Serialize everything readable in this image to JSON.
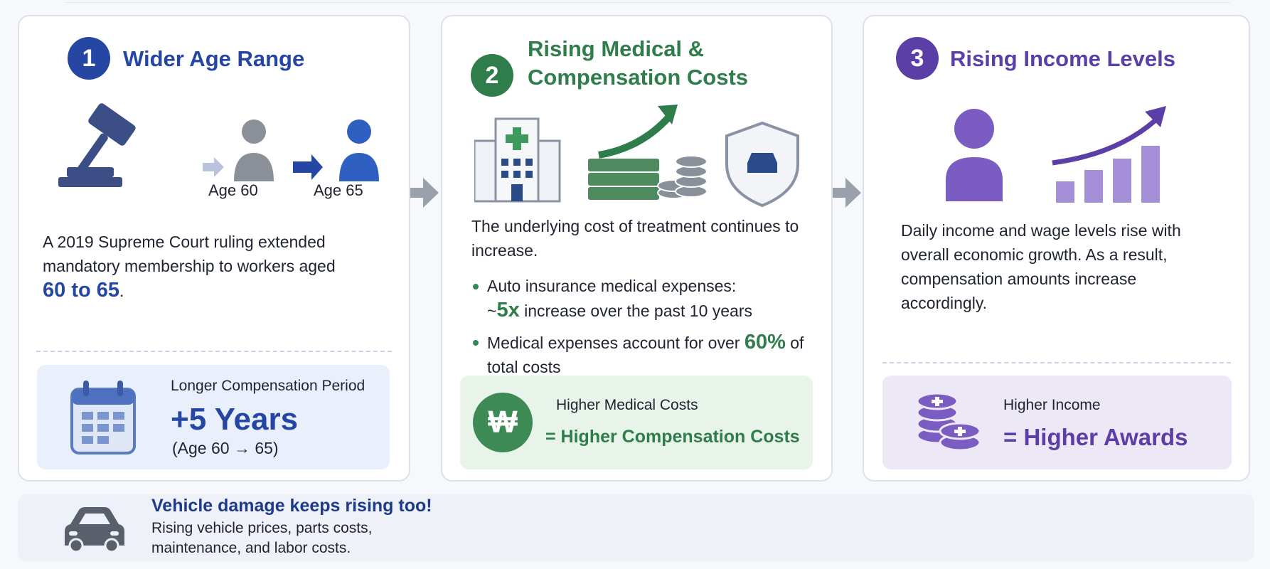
{
  "panels": [
    {
      "number": 1,
      "title": "Wider Age Range",
      "age_labels": [
        "Age 60",
        "Age 65"
      ],
      "body": [
        "A 2019 Supreme Court ruling extended mandatory membership to workers aged ",
        "60 to 65",
        "."
      ],
      "footer": {
        "label": "Longer Compensation Period",
        "value": "+5 Years",
        "note": "(Age 60 → 65)"
      }
    },
    {
      "number": 2,
      "title": "Rising Medical & Compensation Costs",
      "body": "The underlying cost of treatment continues to increase.",
      "bullets": [
        [
          "Auto insurance medical expenses:",
          "~",
          "5x",
          " increase over the past 10 years"
        ],
        [
          "Medical expenses account for over ",
          "60%",
          " of total costs"
        ]
      ],
      "footer": {
        "icon_text": "₩",
        "label": "Higher Medical Costs",
        "value": "= Higher Compensation Costs"
      }
    },
    {
      "number": 3,
      "title": "Rising Income Levels",
      "body": "Daily income and wage levels rise with overall economic growth. As a result, compensation amounts increase accordingly.",
      "footer": {
        "label": "Higher Income",
        "value": "= Higher Awards"
      }
    }
  ],
  "banner": {
    "title": "Vehicle damage keeps rising too!",
    "text": "Rising vehicle prices, parts costs, maintenance, and labor costs."
  }
}
